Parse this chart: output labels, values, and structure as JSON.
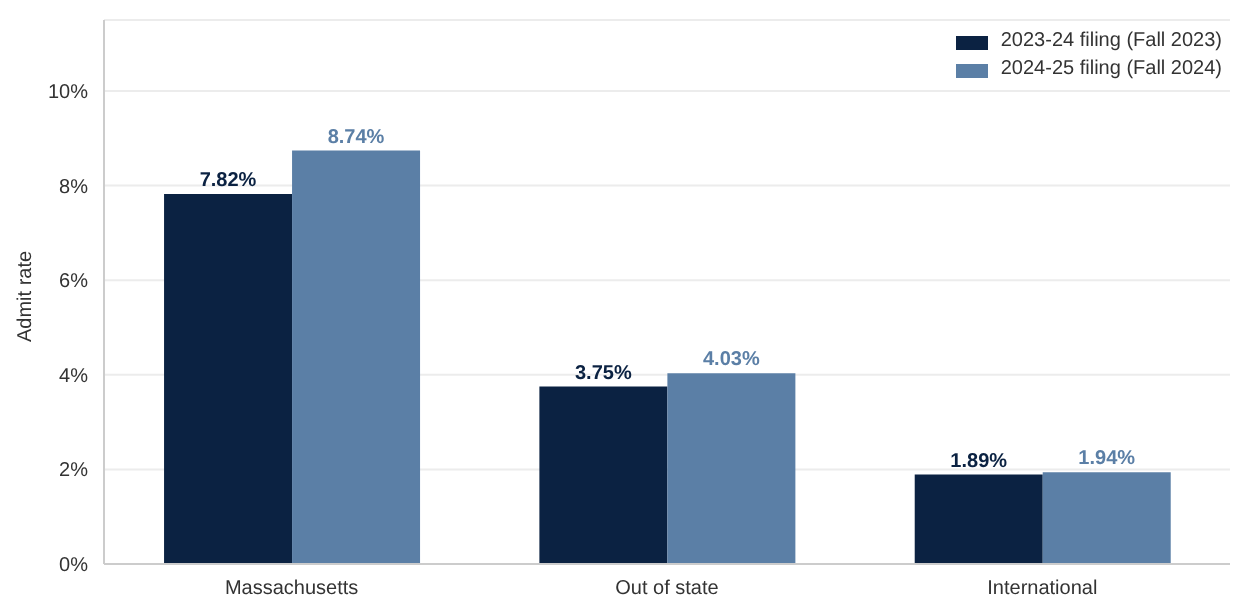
{
  "chart_data": {
    "type": "bar",
    "ylabel": "Admit rate",
    "categories": [
      "Massachusetts",
      "Out of state",
      "International"
    ],
    "series": [
      {
        "name": "2023-24 filing (Fall 2023)",
        "color": "#0b2242",
        "values": [
          7.82,
          3.75,
          1.89
        ],
        "value_labels": [
          "7.82%",
          "3.75%",
          "1.89%"
        ]
      },
      {
        "name": "2024-25 filing (Fall 2024)",
        "color": "#5b7fa6",
        "values": [
          8.74,
          4.03,
          1.94
        ],
        "value_labels": [
          "8.74%",
          "4.03%",
          "1.94%"
        ]
      }
    ],
    "ylim": [
      0,
      11.5
    ],
    "yticks": [
      {
        "value": 0,
        "label": "0%"
      },
      {
        "value": 2,
        "label": "2%"
      },
      {
        "value": 4,
        "label": "4%"
      },
      {
        "value": 6,
        "label": "6%"
      },
      {
        "value": 8,
        "label": "8%"
      },
      {
        "value": 10,
        "label": "10%"
      }
    ],
    "grid": "y",
    "legend": "top right"
  }
}
